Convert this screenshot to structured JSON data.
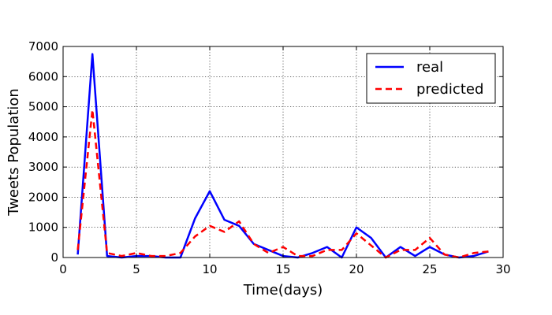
{
  "chart_data": {
    "type": "line",
    "xlabel": "Time(days)",
    "ylabel": "Tweets Population",
    "xlim": [
      0,
      30
    ],
    "ylim": [
      0,
      7000
    ],
    "xticks": [
      0,
      5,
      10,
      15,
      20,
      25,
      30
    ],
    "yticks": [
      0,
      1000,
      2000,
      3000,
      4000,
      5000,
      6000,
      7000
    ],
    "grid": true,
    "legend_position": "top-right",
    "x": [
      1,
      2,
      3,
      4,
      5,
      6,
      7,
      8,
      9,
      10,
      11,
      12,
      13,
      14,
      15,
      16,
      17,
      18,
      19,
      20,
      21,
      22,
      23,
      24,
      25,
      26,
      27,
      28,
      29
    ],
    "series": [
      {
        "name": "real",
        "color": "#0000ff",
        "style": "solid",
        "values": [
          100,
          6750,
          50,
          0,
          50,
          50,
          0,
          0,
          1300,
          2200,
          1250,
          1050,
          450,
          250,
          50,
          0,
          150,
          350,
          0,
          1000,
          650,
          0,
          350,
          50,
          350,
          100,
          0,
          50,
          200
        ]
      },
      {
        "name": "predicted",
        "color": "#ff0000",
        "style": "dashed",
        "values": [
          250,
          4900,
          150,
          50,
          150,
          50,
          50,
          150,
          700,
          1050,
          850,
          1200,
          450,
          150,
          350,
          50,
          50,
          250,
          250,
          800,
          400,
          0,
          250,
          250,
          650,
          100,
          0,
          150,
          200
        ]
      }
    ]
  }
}
